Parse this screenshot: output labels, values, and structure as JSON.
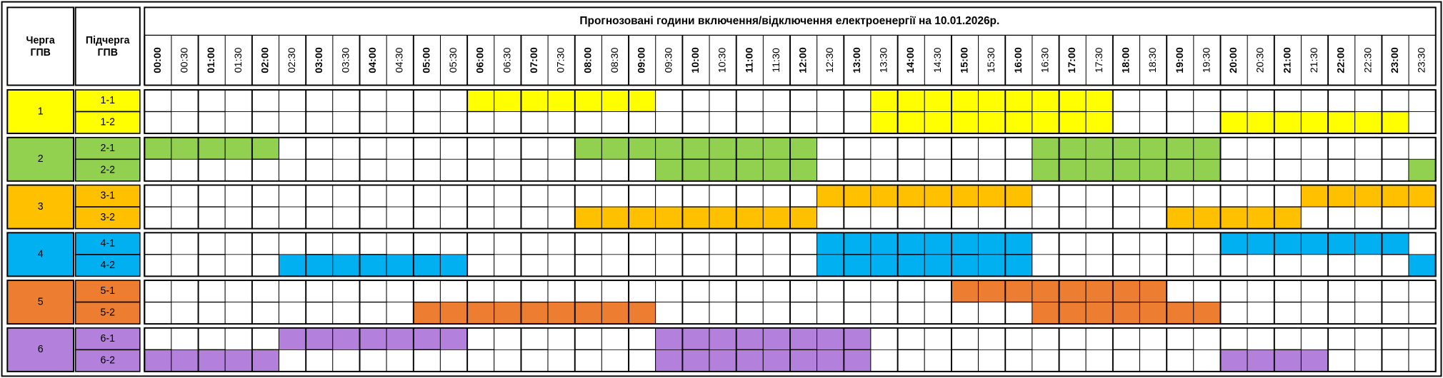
{
  "header": {
    "group": [
      "Черга",
      "ГПВ"
    ],
    "subgroup": [
      "Підчерга",
      "ГПВ"
    ],
    "title": "Прогнозовані години включення/відключення електроенергії на 10.01.2026р."
  },
  "times": [
    "00:00",
    "00:30",
    "01:00",
    "01:30",
    "02:00",
    "02:30",
    "03:00",
    "03:30",
    "04:00",
    "04:30",
    "05:00",
    "05:30",
    "06:00",
    "06:30",
    "07:00",
    "07:30",
    "08:00",
    "08:30",
    "09:00",
    "09:30",
    "10:00",
    "10:30",
    "11:00",
    "11:30",
    "12:00",
    "12:30",
    "13:00",
    "13:30",
    "14:00",
    "14:30",
    "15:00",
    "15:30",
    "16:00",
    "16:30",
    "17:00",
    "17:30",
    "18:00",
    "18:30",
    "19:00",
    "19:30",
    "20:00",
    "20:30",
    "21:00",
    "21:30",
    "22:00",
    "22:30",
    "23:00",
    "23:30"
  ],
  "groups": [
    {
      "label": "1",
      "color": "#ffff00",
      "subgroups": [
        {
          "label": "1-1",
          "slots": [
            0,
            0,
            0,
            0,
            0,
            0,
            0,
            0,
            0,
            0,
            0,
            0,
            1,
            1,
            1,
            1,
            1,
            1,
            1,
            0,
            0,
            0,
            0,
            0,
            0,
            0,
            0,
            1,
            1,
            1,
            1,
            1,
            1,
            1,
            1,
            1,
            0,
            0,
            0,
            0,
            0,
            0,
            0,
            0,
            0,
            0,
            0,
            0
          ]
        },
        {
          "label": "1-2",
          "slots": [
            0,
            0,
            0,
            0,
            0,
            0,
            0,
            0,
            0,
            0,
            0,
            0,
            0,
            0,
            0,
            0,
            0,
            0,
            0,
            0,
            0,
            0,
            0,
            0,
            0,
            0,
            0,
            1,
            1,
            1,
            1,
            1,
            1,
            1,
            1,
            1,
            0,
            0,
            0,
            0,
            1,
            1,
            1,
            1,
            1,
            1,
            1,
            0
          ]
        }
      ]
    },
    {
      "label": "2",
      "color": "#92d050",
      "subgroups": [
        {
          "label": "2-1",
          "slots": [
            1,
            1,
            1,
            1,
            1,
            0,
            0,
            0,
            0,
            0,
            0,
            0,
            0,
            0,
            0,
            0,
            1,
            1,
            1,
            1,
            1,
            1,
            1,
            1,
            1,
            0,
            0,
            0,
            0,
            0,
            0,
            0,
            0,
            1,
            1,
            1,
            1,
            1,
            1,
            1,
            0,
            0,
            0,
            0,
            0,
            0,
            0,
            0
          ]
        },
        {
          "label": "2-2",
          "slots": [
            0,
            0,
            0,
            0,
            0,
            0,
            0,
            0,
            0,
            0,
            0,
            0,
            0,
            0,
            0,
            0,
            0,
            0,
            0,
            1,
            1,
            1,
            1,
            1,
            1,
            0,
            0,
            0,
            0,
            0,
            0,
            0,
            0,
            1,
            1,
            1,
            1,
            1,
            1,
            1,
            0,
            0,
            0,
            0,
            0,
            0,
            0,
            1
          ]
        }
      ]
    },
    {
      "label": "3",
      "color": "#ffc000",
      "subgroups": [
        {
          "label": "3-1",
          "slots": [
            0,
            0,
            0,
            0,
            0,
            0,
            0,
            0,
            0,
            0,
            0,
            0,
            0,
            0,
            0,
            0,
            0,
            0,
            0,
            0,
            0,
            0,
            0,
            0,
            0,
            1,
            1,
            1,
            1,
            1,
            1,
            1,
            1,
            0,
            0,
            0,
            0,
            0,
            0,
            0,
            0,
            0,
            0,
            1,
            1,
            1,
            1,
            1
          ]
        },
        {
          "label": "3-2",
          "slots": [
            0,
            0,
            0,
            0,
            0,
            0,
            0,
            0,
            0,
            0,
            0,
            0,
            0,
            0,
            0,
            0,
            1,
            1,
            1,
            1,
            1,
            1,
            1,
            1,
            1,
            0,
            0,
            0,
            0,
            0,
            0,
            0,
            0,
            0,
            0,
            0,
            0,
            0,
            1,
            1,
            1,
            1,
            1,
            0,
            0,
            0,
            0,
            0
          ]
        }
      ]
    },
    {
      "label": "4",
      "color": "#00b0f0",
      "subgroups": [
        {
          "label": "4-1",
          "slots": [
            0,
            0,
            0,
            0,
            0,
            0,
            0,
            0,
            0,
            0,
            0,
            0,
            0,
            0,
            0,
            0,
            0,
            0,
            0,
            0,
            0,
            0,
            0,
            0,
            0,
            1,
            1,
            1,
            1,
            1,
            1,
            1,
            1,
            0,
            0,
            0,
            0,
            0,
            0,
            0,
            1,
            1,
            1,
            1,
            1,
            1,
            1,
            0
          ]
        },
        {
          "label": "4-2",
          "slots": [
            0,
            0,
            0,
            0,
            0,
            1,
            1,
            1,
            1,
            1,
            1,
            1,
            0,
            0,
            0,
            0,
            0,
            0,
            0,
            0,
            0,
            0,
            0,
            0,
            0,
            1,
            1,
            1,
            1,
            1,
            1,
            1,
            1,
            0,
            0,
            0,
            0,
            0,
            0,
            0,
            0,
            0,
            0,
            0,
            0,
            0,
            0,
            1
          ]
        }
      ]
    },
    {
      "label": "5",
      "color": "#ed7d31",
      "subgroups": [
        {
          "label": "5-1",
          "slots": [
            0,
            0,
            0,
            0,
            0,
            0,
            0,
            0,
            0,
            0,
            0,
            0,
            0,
            0,
            0,
            0,
            0,
            0,
            0,
            0,
            0,
            0,
            0,
            0,
            0,
            0,
            0,
            0,
            0,
            0,
            1,
            1,
            1,
            1,
            1,
            1,
            1,
            1,
            0,
            0,
            0,
            0,
            0,
            0,
            0,
            0,
            0,
            0
          ]
        },
        {
          "label": "5-2",
          "slots": [
            0,
            0,
            0,
            0,
            0,
            0,
            0,
            0,
            0,
            0,
            1,
            1,
            1,
            1,
            1,
            1,
            1,
            1,
            1,
            0,
            0,
            0,
            0,
            0,
            0,
            0,
            0,
            0,
            0,
            0,
            0,
            0,
            0,
            1,
            1,
            1,
            1,
            1,
            1,
            1,
            0,
            0,
            0,
            0,
            0,
            0,
            0,
            0
          ]
        }
      ]
    },
    {
      "label": "6",
      "color": "#b381dc",
      "subgroups": [
        {
          "label": "6-1",
          "slots": [
            0,
            0,
            0,
            0,
            0,
            1,
            1,
            1,
            1,
            1,
            1,
            1,
            0,
            0,
            0,
            0,
            0,
            0,
            0,
            1,
            1,
            1,
            1,
            1,
            1,
            1,
            1,
            0,
            0,
            0,
            0,
            0,
            0,
            0,
            0,
            0,
            0,
            0,
            0,
            0,
            0,
            0,
            0,
            0,
            0,
            0,
            0,
            0
          ]
        },
        {
          "label": "6-2",
          "slots": [
            1,
            1,
            1,
            1,
            1,
            0,
            0,
            0,
            0,
            0,
            0,
            0,
            0,
            0,
            0,
            0,
            0,
            0,
            0,
            1,
            1,
            1,
            1,
            1,
            1,
            1,
            1,
            0,
            0,
            0,
            0,
            0,
            0,
            0,
            0,
            0,
            0,
            0,
            0,
            0,
            1,
            1,
            1,
            1,
            0,
            0,
            0,
            0
          ]
        }
      ]
    }
  ]
}
